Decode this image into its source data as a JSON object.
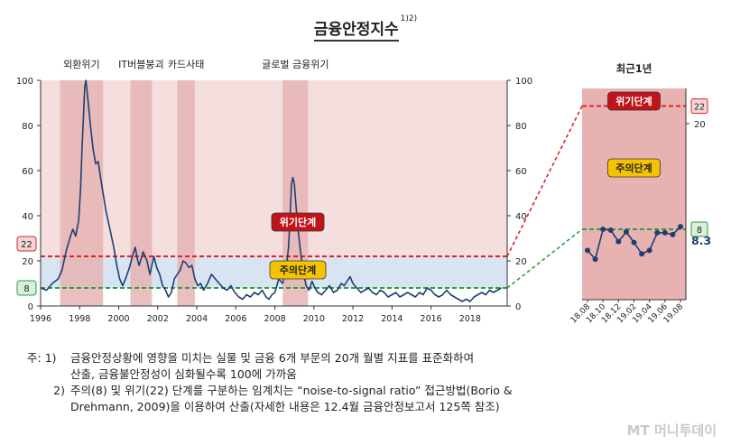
{
  "title": "금융안정지수",
  "title_note": "1)2)",
  "chart_data": [
    {
      "type": "line",
      "x_range": [
        1996,
        2019.9
      ],
      "x_ticks": [
        "1996",
        "1998",
        "2000",
        "2002",
        "2004",
        "2006",
        "2008",
        "2010",
        "2012",
        "2014",
        "2016",
        "2018"
      ],
      "y_range": [
        0,
        100
      ],
      "y_ticks": [
        0,
        20,
        40,
        60,
        80,
        100
      ],
      "grid": false,
      "zones": {
        "crisis_bg_color": "#f4dede",
        "caution_bg_color": "#d9e4f2",
        "normal_bg_color": "#ffffff",
        "crisis_threshold": 22,
        "caution_threshold": 8
      },
      "shaded_periods": [
        {
          "label": "외환위기",
          "start": 1997.0,
          "end": 1999.2
        },
        {
          "label": "IT버블붕괴",
          "start": 2000.6,
          "end": 2001.7
        },
        {
          "label": "카드사태",
          "start": 2003.0,
          "end": 2003.9
        },
        {
          "label": "글로벌 금융위기",
          "start": 2008.4,
          "end": 2009.7
        }
      ],
      "shade_color": "#e5b4b4",
      "threshold_lines": [
        {
          "label": "위기단계",
          "value": 22,
          "color": "#e32121",
          "badge_bg": "#c0141b",
          "badge_color": "#ffffff"
        },
        {
          "label": "주의단계",
          "value": 8,
          "color": "#2aa13a",
          "badge_bg": "#f5c400",
          "badge_color": "#222222"
        }
      ],
      "series": [
        {
          "color": "#1d3f72",
          "points": [
            [
              1996.0,
              8
            ],
            [
              1996.3,
              7
            ],
            [
              1996.6,
              10
            ],
            [
              1996.9,
              12
            ],
            [
              1997.1,
              16
            ],
            [
              1997.3,
              24
            ],
            [
              1997.5,
              30
            ],
            [
              1997.65,
              34
            ],
            [
              1997.8,
              31
            ],
            [
              1997.95,
              38
            ],
            [
              1998.05,
              52
            ],
            [
              1998.12,
              70
            ],
            [
              1998.2,
              85
            ],
            [
              1998.26,
              97
            ],
            [
              1998.32,
              100
            ],
            [
              1998.42,
              92
            ],
            [
              1998.55,
              80
            ],
            [
              1998.68,
              70
            ],
            [
              1998.82,
              63
            ],
            [
              1998.95,
              64
            ],
            [
              1999.05,
              58
            ],
            [
              1999.2,
              50
            ],
            [
              1999.35,
              42
            ],
            [
              1999.55,
              34
            ],
            [
              1999.75,
              26
            ],
            [
              1999.9,
              18
            ],
            [
              2000.05,
              12
            ],
            [
              2000.2,
              9
            ],
            [
              2000.35,
              12
            ],
            [
              2000.55,
              17
            ],
            [
              2000.7,
              22
            ],
            [
              2000.85,
              26
            ],
            [
              2000.95,
              21
            ],
            [
              2001.05,
              18
            ],
            [
              2001.25,
              24
            ],
            [
              2001.45,
              20
            ],
            [
              2001.6,
              14
            ],
            [
              2001.8,
              22
            ],
            [
              2001.95,
              17
            ],
            [
              2002.1,
              14
            ],
            [
              2002.25,
              9
            ],
            [
              2002.4,
              7
            ],
            [
              2002.55,
              4
            ],
            [
              2002.7,
              6
            ],
            [
              2002.85,
              12
            ],
            [
              2003.0,
              14
            ],
            [
              2003.15,
              16
            ],
            [
              2003.3,
              20
            ],
            [
              2003.45,
              19
            ],
            [
              2003.6,
              17
            ],
            [
              2003.75,
              18
            ],
            [
              2003.9,
              12
            ],
            [
              2004.05,
              9
            ],
            [
              2004.2,
              10
            ],
            [
              2004.35,
              7
            ],
            [
              2004.55,
              10
            ],
            [
              2004.75,
              14
            ],
            [
              2004.95,
              12
            ],
            [
              2005.15,
              10
            ],
            [
              2005.35,
              8
            ],
            [
              2005.55,
              7
            ],
            [
              2005.75,
              9
            ],
            [
              2005.95,
              6
            ],
            [
              2006.15,
              4
            ],
            [
              2006.35,
              3
            ],
            [
              2006.55,
              5
            ],
            [
              2006.75,
              4
            ],
            [
              2006.95,
              6
            ],
            [
              2007.15,
              5
            ],
            [
              2007.35,
              7
            ],
            [
              2007.55,
              4
            ],
            [
              2007.7,
              3
            ],
            [
              2007.85,
              5
            ],
            [
              2008.0,
              6
            ],
            [
              2008.2,
              12
            ],
            [
              2008.4,
              10
            ],
            [
              2008.6,
              18
            ],
            [
              2008.7,
              26
            ],
            [
              2008.78,
              40
            ],
            [
              2008.85,
              54
            ],
            [
              2008.92,
              57
            ],
            [
              2009.0,
              54
            ],
            [
              2009.08,
              45
            ],
            [
              2009.16,
              36
            ],
            [
              2009.3,
              25
            ],
            [
              2009.45,
              15
            ],
            [
              2009.6,
              9
            ],
            [
              2009.75,
              7
            ],
            [
              2009.9,
              11
            ],
            [
              2010.05,
              8
            ],
            [
              2010.2,
              6
            ],
            [
              2010.4,
              5
            ],
            [
              2010.6,
              7
            ],
            [
              2010.8,
              9
            ],
            [
              2011.0,
              6
            ],
            [
              2011.2,
              7
            ],
            [
              2011.4,
              10
            ],
            [
              2011.55,
              9
            ],
            [
              2011.7,
              11
            ],
            [
              2011.85,
              13
            ],
            [
              2012.0,
              10
            ],
            [
              2012.2,
              8
            ],
            [
              2012.4,
              6
            ],
            [
              2012.6,
              7
            ],
            [
              2012.8,
              8
            ],
            [
              2013.0,
              6
            ],
            [
              2013.2,
              5
            ],
            [
              2013.4,
              7
            ],
            [
              2013.6,
              6
            ],
            [
              2013.8,
              4
            ],
            [
              2014.0,
              5
            ],
            [
              2014.2,
              6
            ],
            [
              2014.4,
              4
            ],
            [
              2014.6,
              5
            ],
            [
              2014.8,
              6
            ],
            [
              2015.0,
              5
            ],
            [
              2015.2,
              4
            ],
            [
              2015.4,
              6
            ],
            [
              2015.6,
              5
            ],
            [
              2015.8,
              8
            ],
            [
              2016.0,
              7
            ],
            [
              2016.2,
              5
            ],
            [
              2016.4,
              4
            ],
            [
              2016.6,
              5
            ],
            [
              2016.8,
              7
            ],
            [
              2017.0,
              5
            ],
            [
              2017.2,
              4
            ],
            [
              2017.4,
              3
            ],
            [
              2017.6,
              2
            ],
            [
              2017.8,
              3
            ],
            [
              2018.0,
              2
            ],
            [
              2018.2,
              4
            ],
            [
              2018.4,
              5
            ],
            [
              2018.6,
              6
            ],
            [
              2018.8,
              5
            ],
            [
              2019.0,
              7
            ],
            [
              2019.2,
              6
            ],
            [
              2019.4,
              7
            ],
            [
              2019.6,
              8
            ]
          ]
        }
      ]
    },
    {
      "type": "line",
      "title": "최근1년",
      "categories": [
        "18.08",
        "18.09",
        "18.10",
        "18.11",
        "18.12",
        "19.01",
        "19.02",
        "19.03",
        "19.04",
        "19.05",
        "19.06",
        "19.07",
        "19.08"
      ],
      "x_tick_labels": [
        "18.08",
        "18.10",
        "18.12",
        "19.02",
        "19.04",
        "19.06",
        "19.08"
      ],
      "values": [
        5.6,
        4.6,
        8.0,
        7.9,
        6.6,
        7.7,
        6.5,
        5.2,
        5.6,
        7.6,
        7.6,
        7.4,
        8.3
      ],
      "y_range": [
        0,
        24
      ],
      "y_ticks": [
        20
      ],
      "marker_color": "#1d3f72",
      "bg_color": "#e8b2b2",
      "last_value_label": "8.3",
      "threshold_lines": [
        {
          "label": "위기단계",
          "value": 22,
          "color": "#e32121",
          "badge_bg": "#c0141b",
          "badge_color": "#ffffff"
        },
        {
          "label": "주의단계",
          "value": 8,
          "color": "#2aa13a",
          "badge_bg": "#f5c400",
          "badge_color": "#222222"
        }
      ]
    }
  ],
  "notes": {
    "prefix": "주:",
    "items": [
      {
        "marker": "1)",
        "text": "금융안정상황에 영향을 미치는 실물 및 금융 6개 부문의 20개 월별 지표를 표준화하여",
        "cont": "산출, 금융불안정성이 심화될수록 100에 가까움"
      },
      {
        "marker": "2)",
        "text": "주의(8) 및 위기(22) 단계를 구분하는 임계치는 “noise-to-signal ratio” 접근방법(Borio &",
        "cont": "Drehmann, 2009)을 이용하여 산출(자세한 내용은 12.4월 금융안정보고서 125쪽 참조)"
      }
    ]
  },
  "watermark": "MT 머니투데이"
}
